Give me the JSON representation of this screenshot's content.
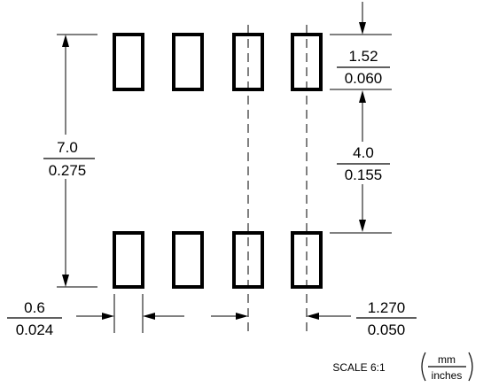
{
  "dimensions": {
    "pad_height": {
      "mm": "1.52",
      "inches": "0.060"
    },
    "row_span": {
      "mm": "7.0",
      "inches": "0.275"
    },
    "pad_gap": {
      "mm": "4.0",
      "inches": "0.155"
    },
    "pad_width": {
      "mm": "0.6",
      "inches": "0.024"
    },
    "pitch": {
      "mm": "1.270",
      "inches": "0.050"
    }
  },
  "footer": {
    "scale": "SCALE 6:1",
    "units": {
      "top": "mm",
      "bottom": "inches"
    }
  },
  "pads": {
    "columns": 4,
    "rows": 2
  }
}
